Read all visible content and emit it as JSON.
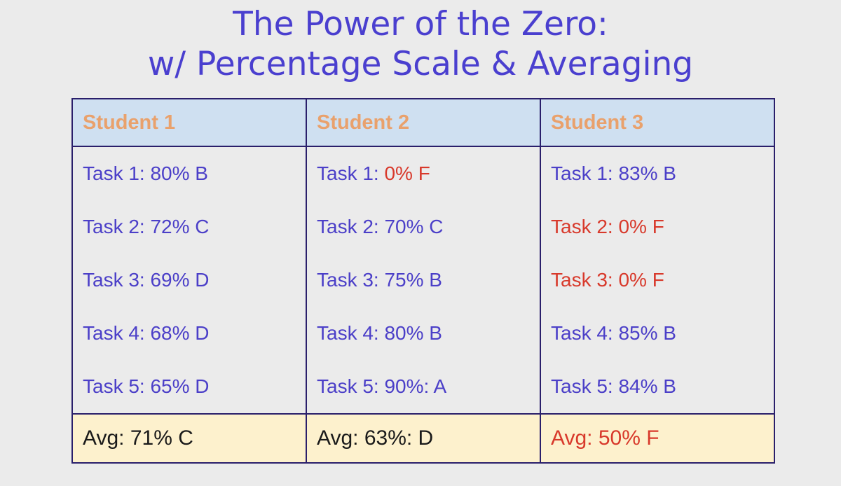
{
  "title": {
    "lines": [
      "The Power of the Zero:",
      "w/ Percentage Scale & Averaging"
    ],
    "color": "#4a3fcf"
  },
  "table": {
    "header": {
      "cells": [
        "Student 1",
        "Student 2",
        "Student 3"
      ],
      "color": "#e9a16c",
      "background": "#cfe0f1"
    },
    "tasks": [
      [
        [
          {
            "text": "Task 1: 80% B",
            "color": "#4b3fc8"
          }
        ],
        [
          {
            "text": "Task 1: ",
            "color": "#4b3fc8"
          },
          {
            "text": "0% F",
            "color": "#d8392b"
          }
        ],
        [
          {
            "text": "Task 1: 83% B",
            "color": "#4b3fc8"
          }
        ]
      ],
      [
        [
          {
            "text": "Task 2: 72% C",
            "color": "#4b3fc8"
          }
        ],
        [
          {
            "text": "Task 2: 70% C",
            "color": "#4b3fc8"
          }
        ],
        [
          {
            "text": "Task 2: 0% F",
            "color": "#d8392b"
          }
        ]
      ],
      [
        [
          {
            "text": "Task 3: 69% D",
            "color": "#4b3fc8"
          }
        ],
        [
          {
            "text": "Task 3: 75% B",
            "color": "#4b3fc8"
          }
        ],
        [
          {
            "text": "Task 3: 0% F",
            "color": "#d8392b"
          }
        ]
      ],
      [
        [
          {
            "text": "Task 4: 68% D",
            "color": "#4b3fc8"
          }
        ],
        [
          {
            "text": "Task 4: 80% B",
            "color": "#4b3fc8"
          }
        ],
        [
          {
            "text": "Task 4: 85% B",
            "color": "#4b3fc8"
          }
        ]
      ],
      [
        [
          {
            "text": "Task 5: 65% D",
            "color": "#4b3fc8"
          }
        ],
        [
          {
            "text": "Task 5: 90%: A",
            "color": "#4b3fc8"
          }
        ],
        [
          {
            "text": "Task 5: 84% B",
            "color": "#4b3fc8"
          }
        ]
      ]
    ],
    "averages": {
      "background": "#fdf1cd",
      "cells": [
        [
          {
            "text": "Avg: 71% C",
            "color": "#1a1a1a"
          }
        ],
        [
          {
            "text": "Avg: 63%: D",
            "color": "#1a1a1a"
          }
        ],
        [
          {
            "text": "Avg: 50% F",
            "color": "#d8392b"
          }
        ]
      ]
    }
  }
}
